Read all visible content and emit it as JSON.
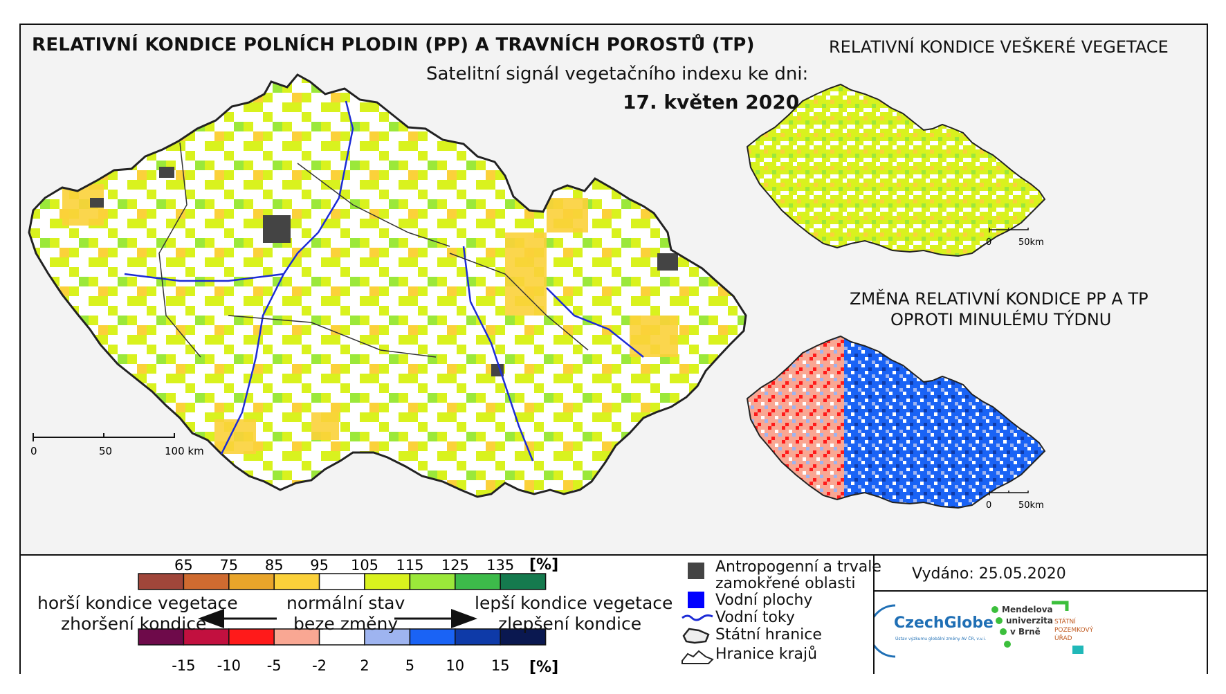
{
  "title_main": "RELATIVNÍ KONDICE POLNÍCH PLODIN (PP) A TRAVNÍCH POROSTŮ (TP)",
  "subtitle": "Satelitní signál vegetačního indexu ke dni:",
  "date": "17. květen 2020",
  "title_veg": "RELATIVNÍ KONDICE VEŠKERÉ VEGETACE",
  "title_change_1": "ZMĚNA RELATIVNÍ KONDICE PP A TP",
  "title_change_2": "OPROTI MINULÉMU TÝDNU",
  "scale_main": [
    "0",
    "50",
    "100 km"
  ],
  "scale_small": [
    "0",
    "50km"
  ],
  "legend": {
    "top_ticks": [
      "65",
      "75",
      "85",
      "95",
      "105",
      "115",
      "125",
      "135"
    ],
    "unit": "[%]",
    "top_colors": [
      "#a0463a",
      "#cf6b30",
      "#e9a52a",
      "#fbd13a",
      "#ffffff",
      "#d9f21e",
      "#9be83a",
      "#3dbb4a",
      "#157a4e"
    ],
    "bottom_ticks": [
      "-15",
      "-10",
      "-5",
      "-2",
      "2",
      "5",
      "10",
      "15"
    ],
    "bottom_colors": [
      "#6e0a4a",
      "#c2103f",
      "#ff1a1a",
      "#f9a793",
      "#ffffff",
      "#9eb4f0",
      "#1a63f5",
      "#0e3aa8",
      "#0a1850"
    ],
    "worse_1": "horší kondice vegetace",
    "worse_2": "zhoršení kondice",
    "normal_1": "normální stav",
    "normal_2": "beze změny",
    "better_1": "lepší kondice vegetace",
    "better_2": "zlepšení kondice"
  },
  "symbols": {
    "anthro_1": "Antropogenní a trvale",
    "anthro_2": "zamokřené oblasti",
    "water": "Vodní plochy",
    "rivers": "Vodní toky",
    "border": "Státní hranice",
    "regions": "Hranice krajů"
  },
  "issued": "Vydáno: 25.05.2020",
  "logos": {
    "czechglobe": "CzechGlobe",
    "czechglobe_sub": "Ústav výzkumu globální změny AV ČR, v.v.i.",
    "mendel_1": "Mendelova",
    "mendel_2": "univerzita",
    "mendel_3": "v Brně",
    "spu_1": "STÁTNÍ",
    "spu_2": "POZEMKOVÝ",
    "spu_3": "ÚŘAD"
  },
  "colors": {
    "anthro": "#444444",
    "water": "#0000ff",
    "river": "#1c2bd6",
    "logo_green": "#3cbf3c",
    "logo_blue": "#1f6fb5",
    "logo_teal": "#20b8b8"
  }
}
